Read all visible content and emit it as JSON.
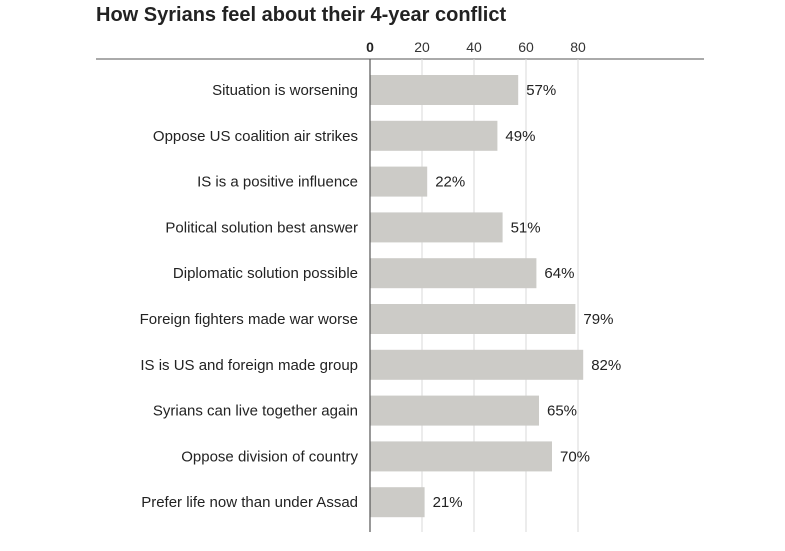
{
  "chart_data": {
    "type": "bar",
    "orientation": "horizontal",
    "title": "How Syrians feel about their 4-year conflict",
    "xlabel": "",
    "ylabel": "",
    "xlim": [
      0,
      80
    ],
    "ticks": [
      0,
      20,
      40,
      60,
      80
    ],
    "tick_labels": [
      "0",
      "20",
      "40",
      "60",
      "80"
    ],
    "grid": true,
    "categories": [
      "Situation is worsening",
      "Oppose US coalition air strikes",
      "IS is a positive influence",
      "Political solution best answer",
      "Diplomatic solution possible",
      "Foreign fighters made war worse",
      "IS is US and foreign made group",
      "Syrians can live together again",
      "Oppose division of country",
      "Prefer life now than under Assad"
    ],
    "values": [
      57,
      49,
      22,
      51,
      64,
      79,
      82,
      65,
      70,
      21
    ],
    "value_labels": [
      "57%",
      "49%",
      "22%",
      "51%",
      "64%",
      "79%",
      "82%",
      "65%",
      "70%",
      "21%"
    ],
    "bar_color": "#cccbc7",
    "grid_color": "#d9d9d9",
    "axis_color": "#555555"
  }
}
